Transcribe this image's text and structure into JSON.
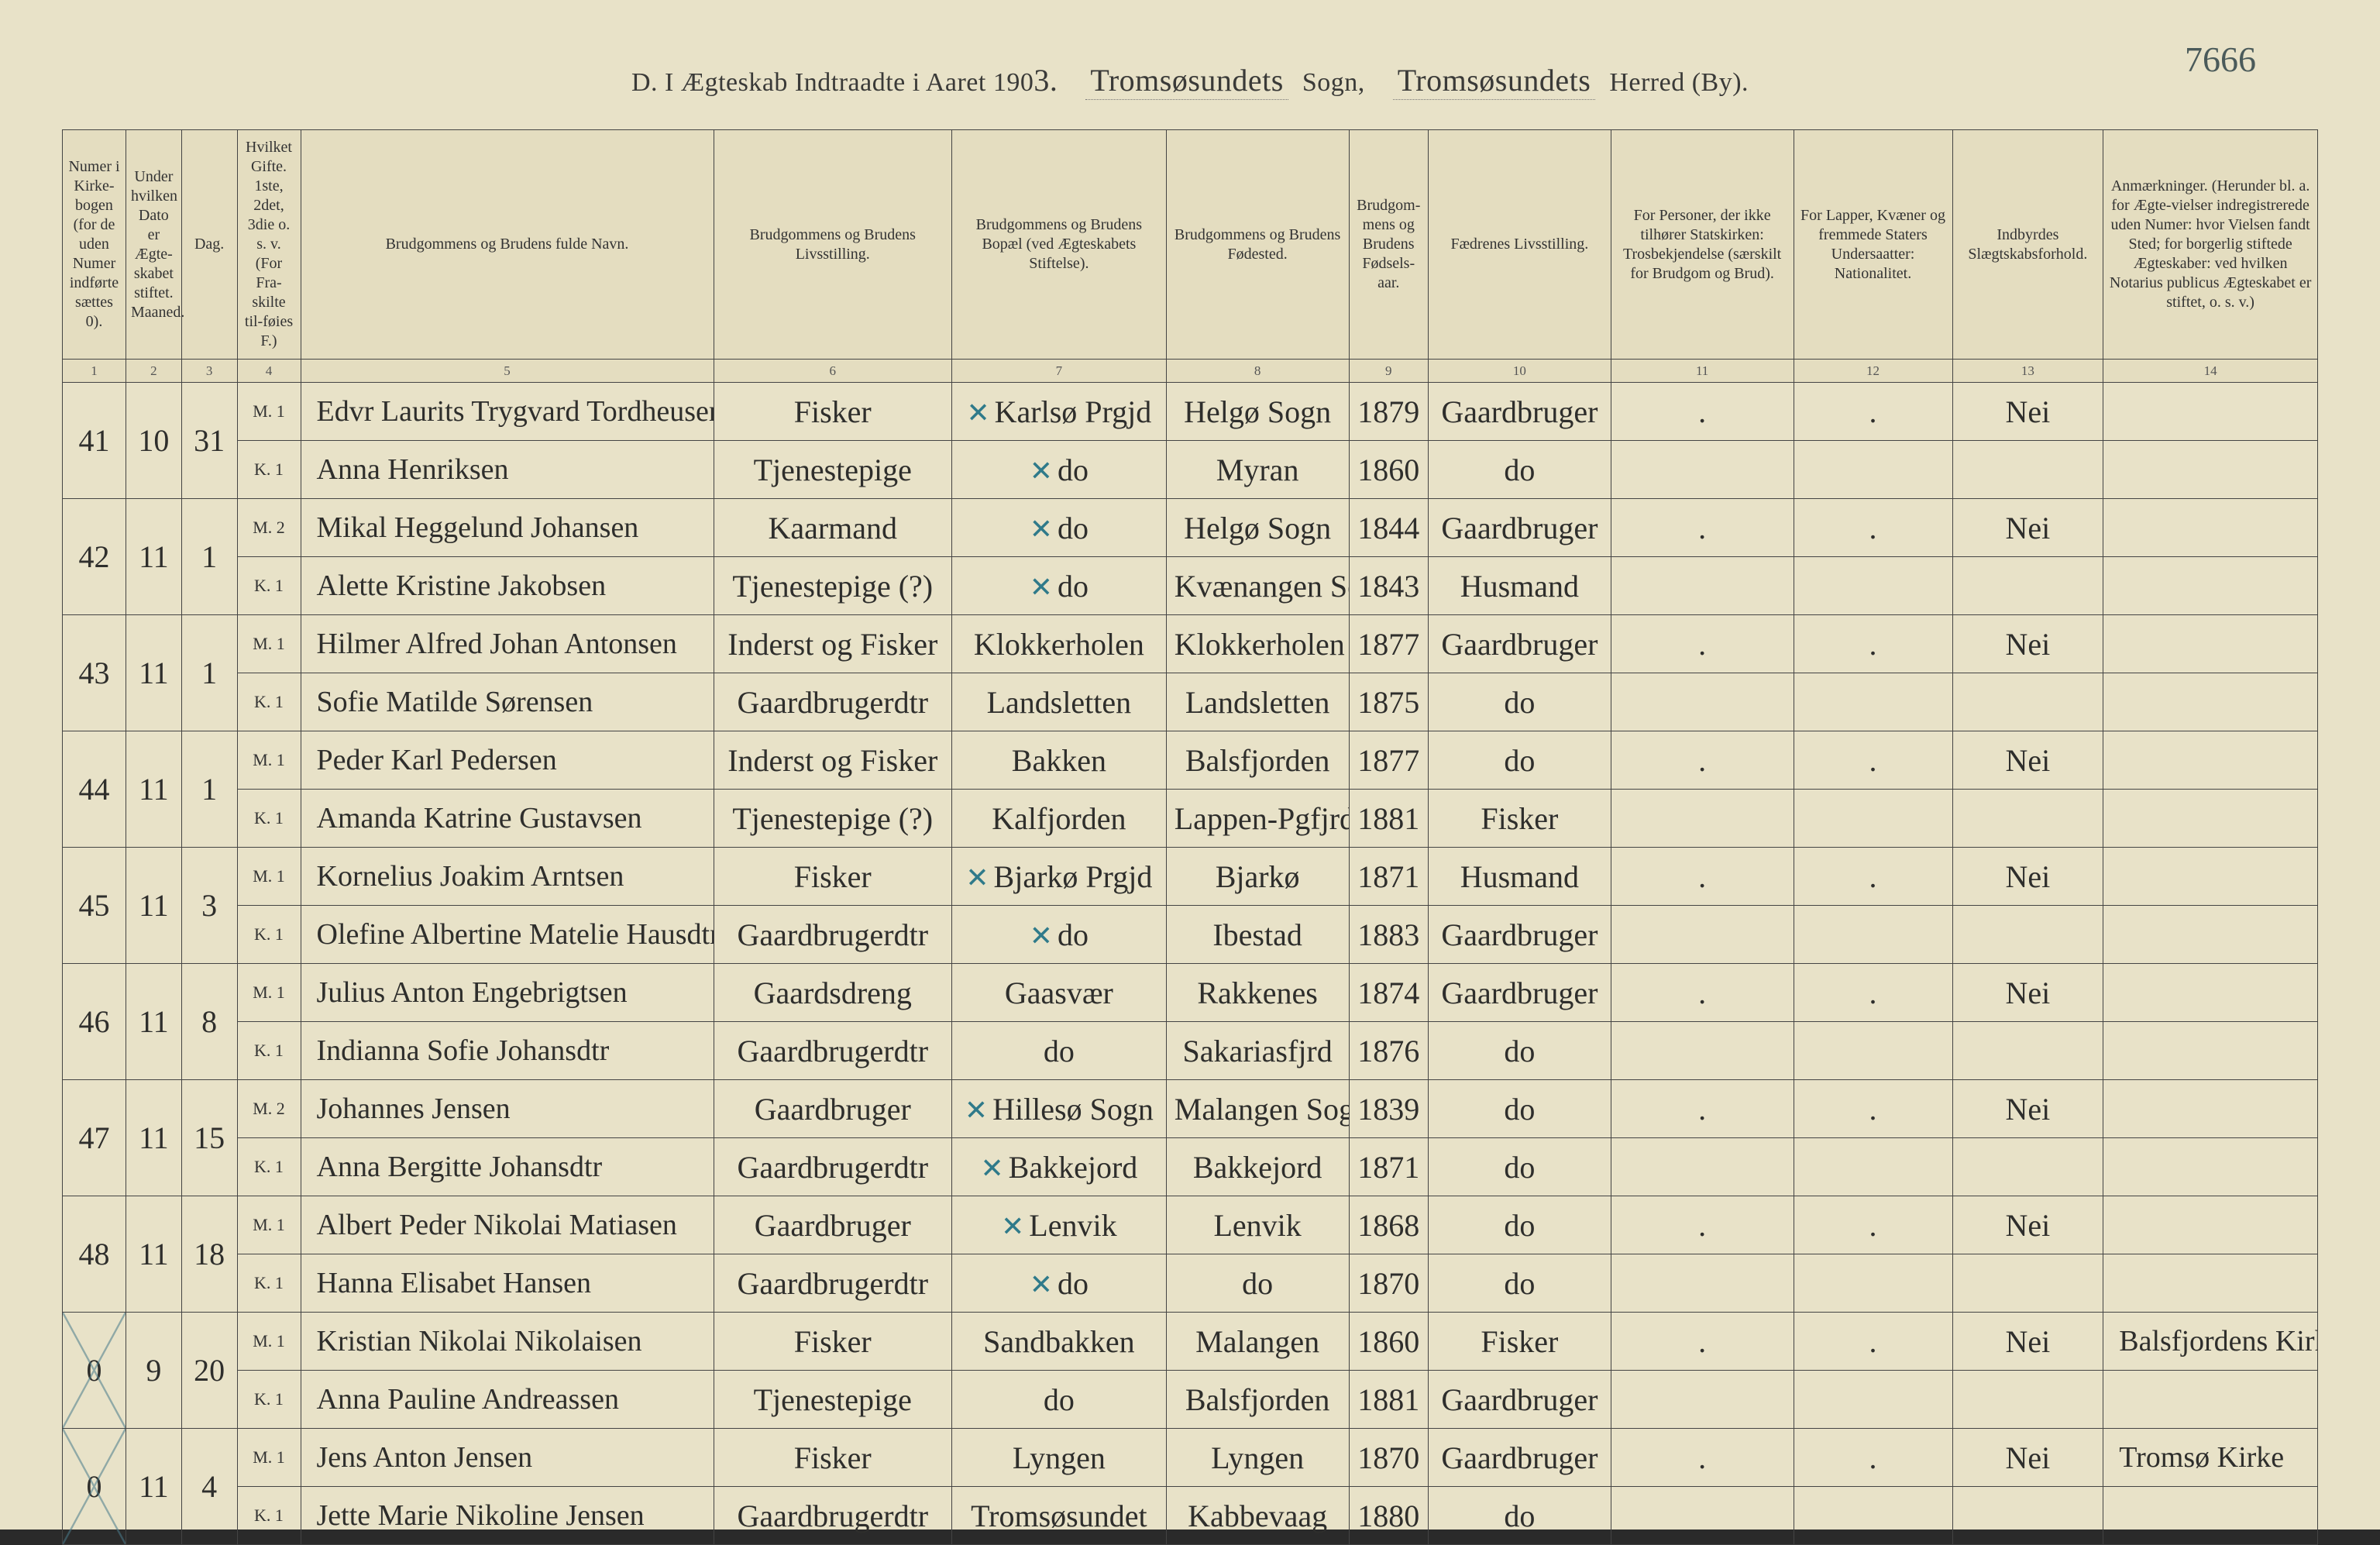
{
  "page_number": "7666",
  "title": {
    "prefix": "D.  I Ægteskab Indtraadte i Aaret 190",
    "year_suffix": "3.",
    "sogn_label": "Sogn,",
    "sogn_value": "Tromsøsundets",
    "herred_label": "Herred (By).",
    "herred_value": "Tromsøsundets"
  },
  "columns": [
    {
      "n": "1",
      "label": "Numer i Kirke-bogen (for de uden Numer indførte sættes 0)."
    },
    {
      "n": "2",
      "label": "Under hvilken Dato er Ægte-skabet stiftet.\nMaaned."
    },
    {
      "n": "3",
      "label": "Dag."
    },
    {
      "n": "4",
      "label": "Hvilket Gifte. 1ste, 2det, 3die o. s. v. (For Fra-skilte til-føies F.)"
    },
    {
      "n": "5",
      "label": "Brudgommens og Brudens fulde Navn."
    },
    {
      "n": "6",
      "label": "Brudgommens og Brudens Livsstilling."
    },
    {
      "n": "7",
      "label": "Brudgommens og Brudens Bopæl (ved Ægteskabets Stiftelse)."
    },
    {
      "n": "8",
      "label": "Brudgommens og Brudens Fødested."
    },
    {
      "n": "9",
      "label": "Brudgom-mens og Brudens Fødsels-aar."
    },
    {
      "n": "10",
      "label": "Fædrenes Livsstilling."
    },
    {
      "n": "11",
      "label": "For Personer, der ikke tilhører Statskirken: Trosbekjendelse (særskilt for Brudgom og Brud)."
    },
    {
      "n": "12",
      "label": "For Lapper, Kvæner og fremmede Staters Undersaatter: Nationalitet."
    },
    {
      "n": "13",
      "label": "Indbyrdes Slægtskabsforhold."
    },
    {
      "n": "14",
      "label": "Anmærkninger. (Herunder bl. a. for Ægte-vielser indregistrerede uden Numer: hvor Vielsen fandt Sted; for borgerlig stiftede Ægteskaber: ved hvilken Notarius publicus Ægteskabet er stiftet, o. s. v.)"
    }
  ],
  "entries": [
    {
      "num": "41",
      "month": "10",
      "day": "31",
      "crossed": false,
      "groom": {
        "gifte": "M. 1",
        "name": "Edvr Laurits Trygvard Tordheusen",
        "liv": "Fisker",
        "bopel": "Karlsø Prgjd",
        "fsted": "Helgø Sogn",
        "faar": "1879",
        "fadre": "Gaardbruger",
        "c11": ".",
        "c12": ".",
        "c13": "Nei",
        "c14": ""
      },
      "bride": {
        "gifte": "K. 1",
        "name": "Anna Henriksen",
        "liv": "Tjenestepige",
        "bopel": "do",
        "fsted": "Myran",
        "faar": "1860",
        "fadre": "do",
        "c11": "",
        "c12": "",
        "c13": "",
        "c14": ""
      },
      "tick7": true
    },
    {
      "num": "42",
      "month": "11",
      "day": "1",
      "crossed": false,
      "groom": {
        "gifte": "M. 2",
        "name": "Mikal Heggelund Johansen",
        "liv": "Kaarmand",
        "bopel": "do",
        "fsted": "Helgø Sogn",
        "faar": "1844",
        "fadre": "Gaardbruger",
        "c11": ".",
        "c12": ".",
        "c13": "Nei",
        "c14": ""
      },
      "bride": {
        "gifte": "K. 1",
        "name": "Alette Kristine Jakobsen",
        "liv": "Tjenestepige (?)",
        "bopel": "do",
        "fsted": "Kvænangen Sogn",
        "faar": "1843",
        "fadre": "Husmand",
        "c11": "",
        "c12": "",
        "c13": "",
        "c14": ""
      },
      "tick7": true
    },
    {
      "num": "43",
      "month": "11",
      "day": "1",
      "crossed": false,
      "groom": {
        "gifte": "M. 1",
        "name": "Hilmer Alfred Johan Antonsen",
        "liv": "Inderst og Fisker",
        "bopel": "Klokkerholen",
        "fsted": "Klokkerholen",
        "faar": "1877",
        "fadre": "Gaardbruger",
        "c11": ".",
        "c12": ".",
        "c13": "Nei",
        "c14": ""
      },
      "bride": {
        "gifte": "K. 1",
        "name": "Sofie Matilde Sørensen",
        "liv": "Gaardbrugerdtr",
        "bopel": "Landsletten",
        "fsted": "Landsletten",
        "faar": "1875",
        "fadre": "do",
        "c11": "",
        "c12": "",
        "c13": "",
        "c14": ""
      },
      "tick7": false
    },
    {
      "num": "44",
      "month": "11",
      "day": "1",
      "crossed": false,
      "groom": {
        "gifte": "M. 1",
        "name": "Peder Karl Pedersen",
        "liv": "Inderst og Fisker",
        "bopel": "Bakken",
        "fsted": "Balsfjorden",
        "faar": "1877",
        "fadre": "do",
        "c11": ".",
        "c12": ".",
        "c13": "Nei",
        "c14": ""
      },
      "bride": {
        "gifte": "K. 1",
        "name": "Amanda Katrine Gustavsen",
        "liv": "Tjenestepige (?)",
        "bopel": "Kalfjorden",
        "fsted": "Lappen-Pgfjrd",
        "faar": "1881",
        "fadre": "Fisker",
        "c11": "",
        "c12": "",
        "c13": "",
        "c14": ""
      },
      "tick7": false
    },
    {
      "num": "45",
      "month": "11",
      "day": "3",
      "crossed": false,
      "groom": {
        "gifte": "M. 1",
        "name": "Kornelius Joakim Arntsen",
        "liv": "Fisker",
        "bopel": "Bjarkø Prgjd",
        "fsted": "Bjarkø",
        "faar": "1871",
        "fadre": "Husmand",
        "c11": ".",
        "c12": ".",
        "c13": "Nei",
        "c14": ""
      },
      "bride": {
        "gifte": "K. 1",
        "name": "Olefine Albertine Matelie Hausdtr",
        "liv": "Gaardbrugerdtr",
        "bopel": "do",
        "fsted": "Ibestad",
        "faar": "1883",
        "fadre": "Gaardbruger",
        "c11": "",
        "c12": "",
        "c13": "",
        "c14": ""
      },
      "tick7": true
    },
    {
      "num": "46",
      "month": "11",
      "day": "8",
      "crossed": false,
      "groom": {
        "gifte": "M. 1",
        "name": "Julius Anton Engebrigtsen",
        "liv": "Gaardsdreng",
        "bopel": "Gaasvær",
        "fsted": "Rakkenes",
        "faar": "1874",
        "fadre": "Gaardbruger",
        "c11": ".",
        "c12": ".",
        "c13": "Nei",
        "c14": ""
      },
      "bride": {
        "gifte": "K. 1",
        "name": "Indianna Sofie Johansdtr",
        "liv": "Gaardbrugerdtr",
        "bopel": "do",
        "fsted": "Sakariasfjrd",
        "faar": "1876",
        "fadre": "do",
        "c11": "",
        "c12": "",
        "c13": "",
        "c14": ""
      },
      "tick7": false
    },
    {
      "num": "47",
      "month": "11",
      "day": "15",
      "crossed": false,
      "groom": {
        "gifte": "M. 2",
        "name": "Johannes Jensen",
        "liv": "Gaardbruger",
        "bopel": "Hillesø Sogn",
        "fsted": "Malangen Sogn",
        "faar": "1839",
        "fadre": "do",
        "c11": ".",
        "c12": ".",
        "c13": "Nei",
        "c14": ""
      },
      "bride": {
        "gifte": "K. 1",
        "name": "Anna Bergitte Johansdtr",
        "liv": "Gaardbrugerdtr",
        "bopel": "Bakkejord",
        "fsted": "Bakkejord",
        "faar": "1871",
        "fadre": "do",
        "c11": "",
        "c12": "",
        "c13": "",
        "c14": ""
      },
      "tick7": true
    },
    {
      "num": "48",
      "month": "11",
      "day": "18",
      "crossed": false,
      "groom": {
        "gifte": "M. 1",
        "name": "Albert Peder Nikolai Matiasen",
        "liv": "Gaardbruger",
        "bopel": "Lenvik",
        "fsted": "Lenvik",
        "faar": "1868",
        "fadre": "do",
        "c11": ".",
        "c12": ".",
        "c13": "Nei",
        "c14": ""
      },
      "bride": {
        "gifte": "K. 1",
        "name": "Hanna Elisabet Hansen",
        "liv": "Gaardbrugerdtr",
        "bopel": "do",
        "fsted": "do",
        "faar": "1870",
        "fadre": "do",
        "c11": "",
        "c12": "",
        "c13": "",
        "c14": ""
      },
      "tick7": true
    },
    {
      "num": "0",
      "month": "9",
      "day": "20",
      "crossed": true,
      "groom": {
        "gifte": "M. 1",
        "name": "Kristian Nikolai Nikolaisen",
        "liv": "Fisker",
        "bopel": "Sandbakken",
        "fsted": "Malangen",
        "faar": "1860",
        "fadre": "Fisker",
        "c11": ".",
        "c12": ".",
        "c13": "Nei",
        "c14": "Balsfjordens Kirke"
      },
      "bride": {
        "gifte": "K. 1",
        "name": "Anna Pauline Andreassen",
        "liv": "Tjenestepige",
        "bopel": "do",
        "fsted": "Balsfjorden",
        "faar": "1881",
        "fadre": "Gaardbruger",
        "c11": "",
        "c12": "",
        "c13": "",
        "c14": ""
      },
      "tick7": false
    },
    {
      "num": "0",
      "month": "11",
      "day": "4",
      "crossed": true,
      "groom": {
        "gifte": "M. 1",
        "name": "Jens Anton Jensen",
        "liv": "Fisker",
        "bopel": "Lyngen",
        "fsted": "Lyngen",
        "faar": "1870",
        "fadre": "Gaardbruger",
        "c11": ".",
        "c12": ".",
        "c13": "Nei",
        "c14": "Tromsø Kirke"
      },
      "bride": {
        "gifte": "K. 1",
        "name": "Jette Marie Nikoline Jensen",
        "liv": "Gaardbrugerdtr",
        "bopel": "Tromsøsundet",
        "fsted": "Kabbevaag",
        "faar": "1880",
        "fadre": "do",
        "c11": "",
        "c12": "",
        "c13": "",
        "c14": ""
      },
      "tick7": false
    }
  ],
  "style": {
    "paper_color": "#e8e2c8",
    "ink_color": "#2e2e2c",
    "pencil_color": "#4a7b8c",
    "border_color": "#444",
    "header_bg": "#e4ddc0",
    "cursive_font": "Brush Script MT",
    "print_font": "Georgia",
    "header_fontsize_pt": 15,
    "body_fontsize_pt": 30
  }
}
